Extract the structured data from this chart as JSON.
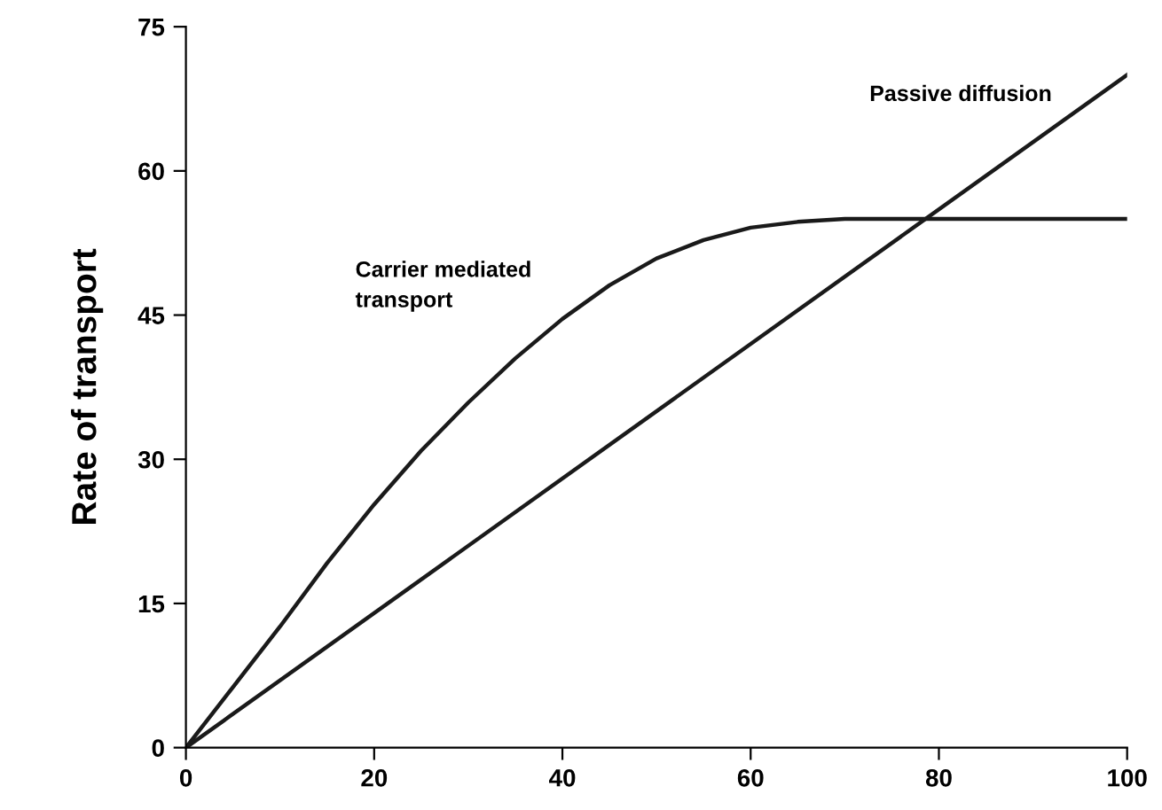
{
  "chart_data": {
    "type": "line",
    "ylabel": "Rate of transport",
    "xlim": [
      0,
      100
    ],
    "ylim": [
      0,
      75
    ],
    "xticks": [
      0,
      20,
      40,
      60,
      80,
      100
    ],
    "yticks": [
      0,
      15,
      30,
      45,
      60,
      75
    ],
    "grid": false,
    "marker": "none",
    "line_style": "solid",
    "series": [
      {
        "name": "Carrier mediated transport",
        "color": "#1a1a1a",
        "x": [
          0,
          5,
          10,
          15,
          20,
          25,
          30,
          35,
          40,
          45,
          50,
          55,
          60,
          65,
          70,
          75,
          80,
          90,
          100
        ],
        "values": [
          0,
          6.3,
          12.6,
          19.2,
          25.3,
          30.9,
          35.9,
          40.5,
          44.6,
          48.1,
          50.9,
          52.8,
          54.1,
          54.7,
          55,
          55,
          55,
          55,
          55
        ]
      },
      {
        "name": "Passive diffusion",
        "color": "#1a1a1a",
        "x": [
          0,
          100
        ],
        "values": [
          0,
          70
        ]
      }
    ]
  }
}
